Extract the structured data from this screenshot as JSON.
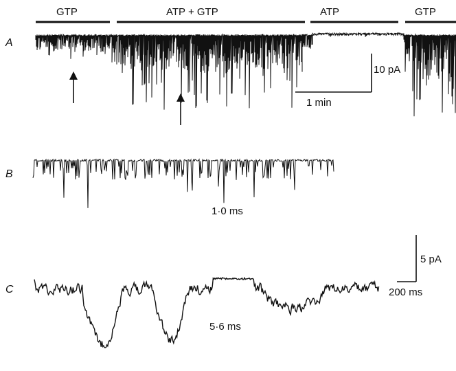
{
  "panels": [
    {
      "id": "A",
      "letter": "A"
    },
    {
      "id": "B",
      "letter": "B"
    },
    {
      "id": "C",
      "letter": "C"
    }
  ],
  "conditions": [
    "GTP",
    "ATP + GTP",
    "ATP",
    "GTP"
  ],
  "scale_bars": {
    "a_current": "10 pA",
    "a_time": "1 min",
    "c_current": "5 pA",
    "c_time": "200 ms"
  },
  "annotations": {
    "b_mean_open_time": "1·0 ms",
    "c_mean_open_time": "5·6 ms"
  },
  "colors": {
    "trace": "#111111",
    "background": "#ffffff"
  }
}
